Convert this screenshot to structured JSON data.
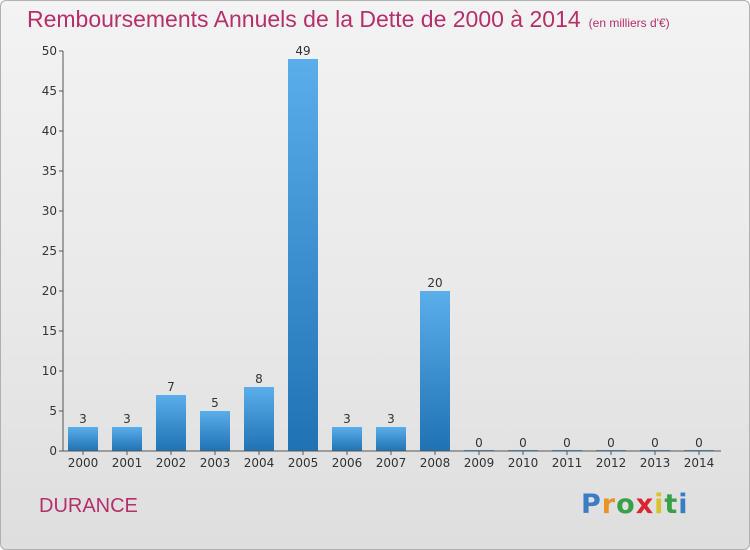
{
  "header": {
    "title": "Remboursements Annuels de la Dette de 2000 à 2014",
    "unit": "(en milliers d'€)"
  },
  "footer": {
    "commune": "DURANCE",
    "brand": "Proxiti"
  },
  "colors": {
    "accent": "#b5306a",
    "bar_top": "#5aaeea",
    "bar_bottom": "#1f72b4",
    "logo_letters": [
      "#3a7dc2",
      "#e8932a",
      "#3aa048",
      "#d8252f",
      "#d8c42a",
      "#3aa048",
      "#3a7dc2"
    ]
  },
  "chart_data": {
    "type": "bar",
    "title": "Remboursements Annuels de la Dette de 2000 à 2014",
    "xlabel": "",
    "ylabel": "",
    "categories": [
      "2000",
      "2001",
      "2002",
      "2003",
      "2004",
      "2005",
      "2006",
      "2007",
      "2008",
      "2009",
      "2010",
      "2011",
      "2012",
      "2013",
      "2014"
    ],
    "values": [
      3,
      3,
      7,
      5,
      8,
      49,
      3,
      3,
      20,
      0,
      0,
      0,
      0,
      0,
      0
    ],
    "ylim": [
      0,
      50
    ],
    "yticks": [
      0,
      5,
      10,
      15,
      20,
      25,
      30,
      35,
      40,
      45,
      50
    ],
    "grid": false,
    "legend": "none"
  }
}
